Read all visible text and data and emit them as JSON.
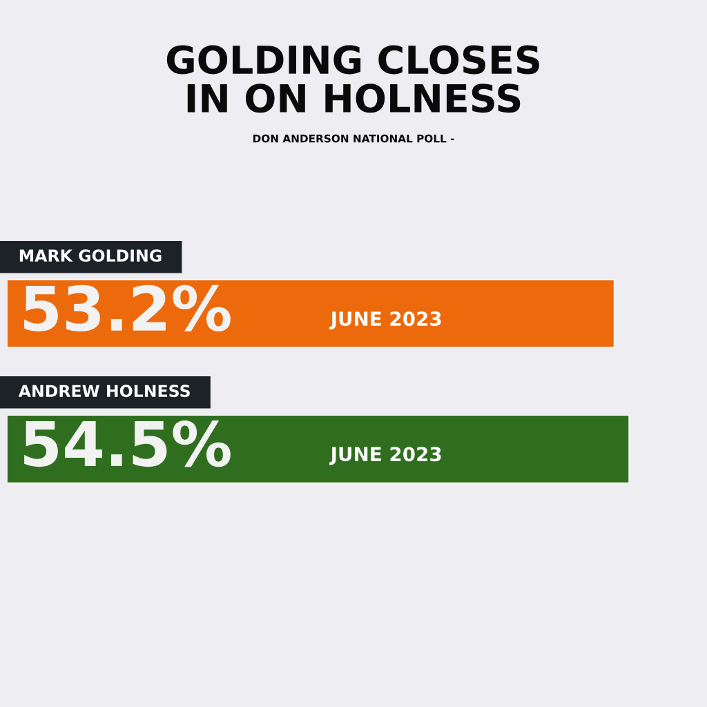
{
  "chart_data": {
    "type": "bar",
    "orientation": "horizontal",
    "title": "GOLDING CLOSES\nIN ON HOLNESS",
    "subtitle": "DON ANDERSON NATIONAL POLL -",
    "categories": [
      "MARK GOLDING",
      "ANDREW HOLNESS"
    ],
    "values": [
      53.2,
      54.5
    ],
    "colors": [
      "#ec6a0c",
      "#2f6e1e"
    ],
    "value_labels": [
      "53.2%",
      "54.5%"
    ],
    "annotations": [
      "JUNE 2023",
      "JUNE 2023"
    ]
  }
}
